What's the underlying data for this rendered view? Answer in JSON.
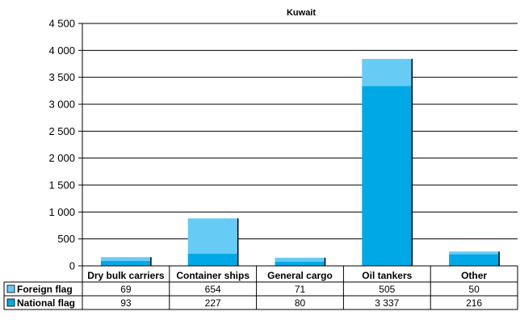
{
  "chart_data": {
    "type": "bar",
    "stacked": true,
    "title": "Kuwait",
    "categories": [
      "Dry bulk carriers",
      "Container ships",
      "General cargo",
      "Oil tankers",
      "Other"
    ],
    "series": [
      {
        "name": "National flag",
        "values": [
          93,
          227,
          80,
          3337,
          216
        ],
        "color": "#00a9e6"
      },
      {
        "name": "Foreign flag",
        "values": [
          69,
          654,
          71,
          505,
          50
        ],
        "color": "#66ccf5"
      }
    ],
    "table_rows": [
      {
        "name": "Foreign flag",
        "cells": [
          "69",
          "654",
          "71",
          "505",
          "50"
        ]
      },
      {
        "name": "National flag",
        "cells": [
          "93",
          "227",
          "80",
          "3 337",
          "216"
        ]
      }
    ],
    "ylim": [
      0,
      4500
    ],
    "yticks": [
      0,
      500,
      1000,
      1500,
      2000,
      2500,
      3000,
      3500,
      4000,
      4500
    ],
    "ytick_labels": [
      "0",
      "500",
      "1 000",
      "1 500",
      "2 000",
      "2 500",
      "3 000",
      "3 500",
      "4 000",
      "4 500"
    ],
    "grid": true,
    "legend": "data-table"
  }
}
